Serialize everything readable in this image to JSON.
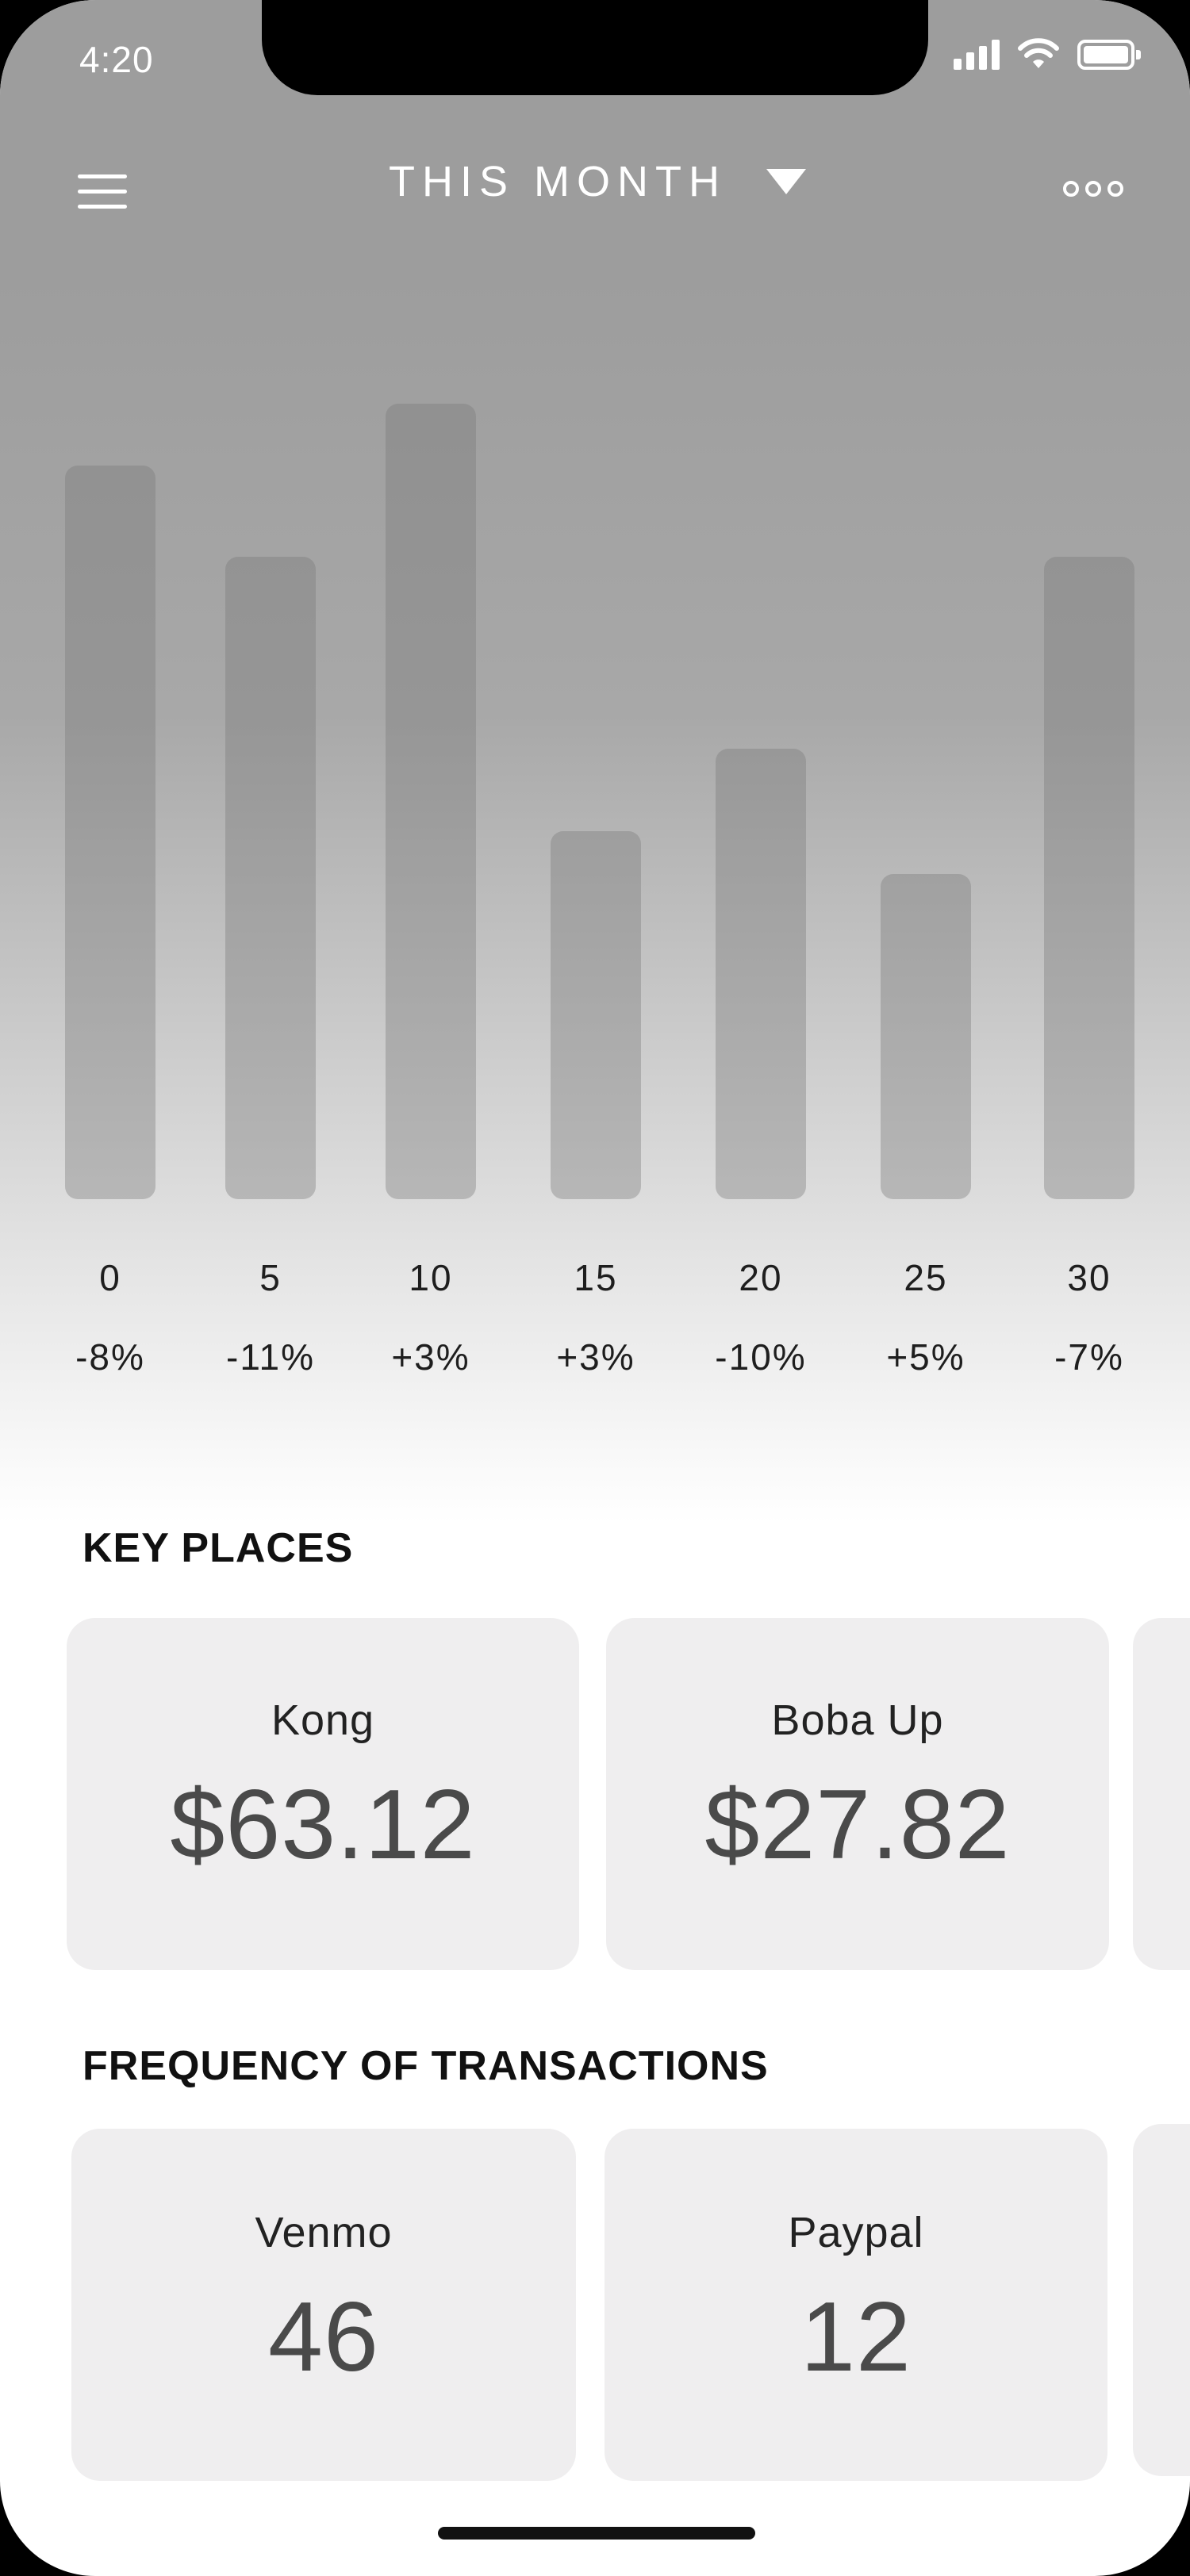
{
  "status": {
    "time": "4:20"
  },
  "header": {
    "title": "THIS MONTH"
  },
  "chart_data": {
    "type": "bar",
    "categories": [
      "0",
      "5",
      "10",
      "15",
      "20",
      "25",
      "30"
    ],
    "values": [
      925,
      810,
      1003,
      464,
      568,
      410,
      810
    ],
    "changes": [
      "-8%",
      "-11%",
      "+3%",
      "+3%",
      "-10%",
      "+5%",
      "-7%"
    ],
    "title": "",
    "xlabel": "",
    "ylabel": ""
  },
  "key_places": {
    "title": "KEY PLACES",
    "items": [
      {
        "name": "Kong",
        "amount": "$63.12"
      },
      {
        "name": "Boba Up",
        "amount": "$27.82"
      }
    ]
  },
  "frequency": {
    "title": "FREQUENCY OF TRANSACTIONS",
    "items": [
      {
        "name": "Venmo",
        "count": "46"
      },
      {
        "name": "Paypal",
        "count": "12"
      }
    ]
  }
}
